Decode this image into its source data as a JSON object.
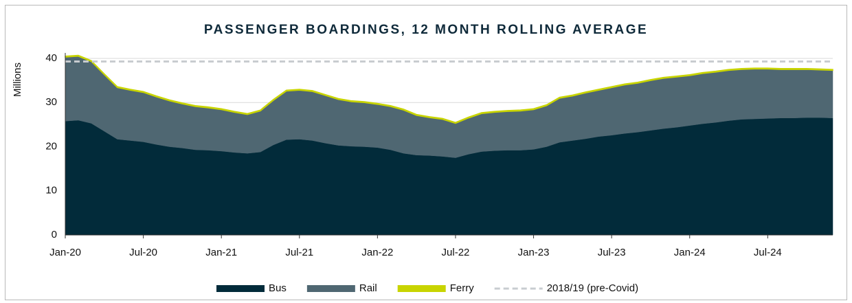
{
  "chart_data": {
    "type": "stacked_area",
    "title": "PASSENGER BOARDINGS, 12 MONTH ROLLING AVERAGE",
    "y_label": "Millions",
    "categories": [
      "Jan-20",
      null,
      null,
      null,
      null,
      null,
      "Jul-20",
      null,
      null,
      null,
      null,
      null,
      "Jan-21",
      null,
      null,
      null,
      null,
      null,
      "Jul-21",
      null,
      null,
      null,
      null,
      null,
      "Jan-22",
      null,
      null,
      null,
      null,
      null,
      "Jul-22",
      null,
      null,
      null,
      null,
      null,
      "Jan-23",
      null,
      null,
      null,
      null,
      null,
      "Jul-23",
      null,
      null,
      null,
      null,
      null,
      "Jan-24",
      null,
      null,
      null,
      null,
      null,
      "Jul-24",
      null,
      null,
      null,
      null,
      null
    ],
    "series": [
      {
        "name": "Bus",
        "color": "#022b3a",
        "values": [
          25.8,
          26,
          25.3,
          23.5,
          21.7,
          21.4,
          21.1,
          20.5,
          20,
          19.7,
          19.3,
          19.2,
          19,
          18.7,
          18.5,
          18.8,
          20.4,
          21.6,
          21.7,
          21.4,
          20.8,
          20.3,
          20.1,
          20,
          19.8,
          19.3,
          18.5,
          18.1,
          18,
          17.8,
          17.5,
          18.3,
          18.9,
          19.1,
          19.2,
          19.2,
          19.4,
          20,
          21,
          21.4,
          21.8,
          22.3,
          22.6,
          23,
          23.3,
          23.7,
          24.1,
          24.4,
          24.8,
          25.2,
          25.5,
          25.9,
          26.2,
          26.3,
          26.4,
          26.5,
          26.5,
          26.6,
          26.6,
          26.5
        ]
      },
      {
        "name": "Rail",
        "color": "#4f6772",
        "values": [
          14.5,
          14.5,
          14,
          12.8,
          11.7,
          11.4,
          11.2,
          10.8,
          10.4,
          10,
          9.8,
          9.6,
          9.4,
          9.1,
          8.8,
          9.3,
          10.1,
          11,
          11.1,
          11.1,
          10.8,
          10.4,
          10.1,
          10,
          9.8,
          9.8,
          9.8,
          9,
          8.6,
          8.4,
          7.8,
          8.2,
          8.6,
          8.7,
          8.8,
          8.9,
          9,
          9.3,
          10,
          10.1,
          10.4,
          10.5,
          10.8,
          11,
          11.1,
          11.3,
          11.4,
          11.4,
          11.3,
          11.4,
          11.4,
          11.4,
          11.3,
          11.3,
          11.2,
          11,
          11,
          10.9,
          10.8,
          10.8
        ]
      },
      {
        "name": "Ferry",
        "color": "#c8d400",
        "values": [
          0.2,
          0.2,
          0.2,
          0.2,
          0.2,
          0.2,
          0.2,
          0.2,
          0.2,
          0.2,
          0.2,
          0.2,
          0.2,
          0.2,
          0.2,
          0.2,
          0.2,
          0.2,
          0.2,
          0.2,
          0.2,
          0.2,
          0.2,
          0.2,
          0.2,
          0.2,
          0.2,
          0.2,
          0.2,
          0.2,
          0.2,
          0.2,
          0.2,
          0.2,
          0.2,
          0.2,
          0.2,
          0.2,
          0.2,
          0.2,
          0.2,
          0.2,
          0.2,
          0.2,
          0.2,
          0.2,
          0.2,
          0.2,
          0.2,
          0.2,
          0.2,
          0.2,
          0.2,
          0.2,
          0.2,
          0.2,
          0.2,
          0.2,
          0.2,
          0.2
        ]
      }
    ],
    "reference": {
      "name": "2018/19 (pre-Covid)",
      "value": 39.3,
      "color": "#c8ccd0"
    },
    "ylim": [
      0,
      40
    ],
    "yticks": [
      0,
      10,
      20,
      30,
      40
    ],
    "grid": true,
    "legend": "bottom"
  }
}
